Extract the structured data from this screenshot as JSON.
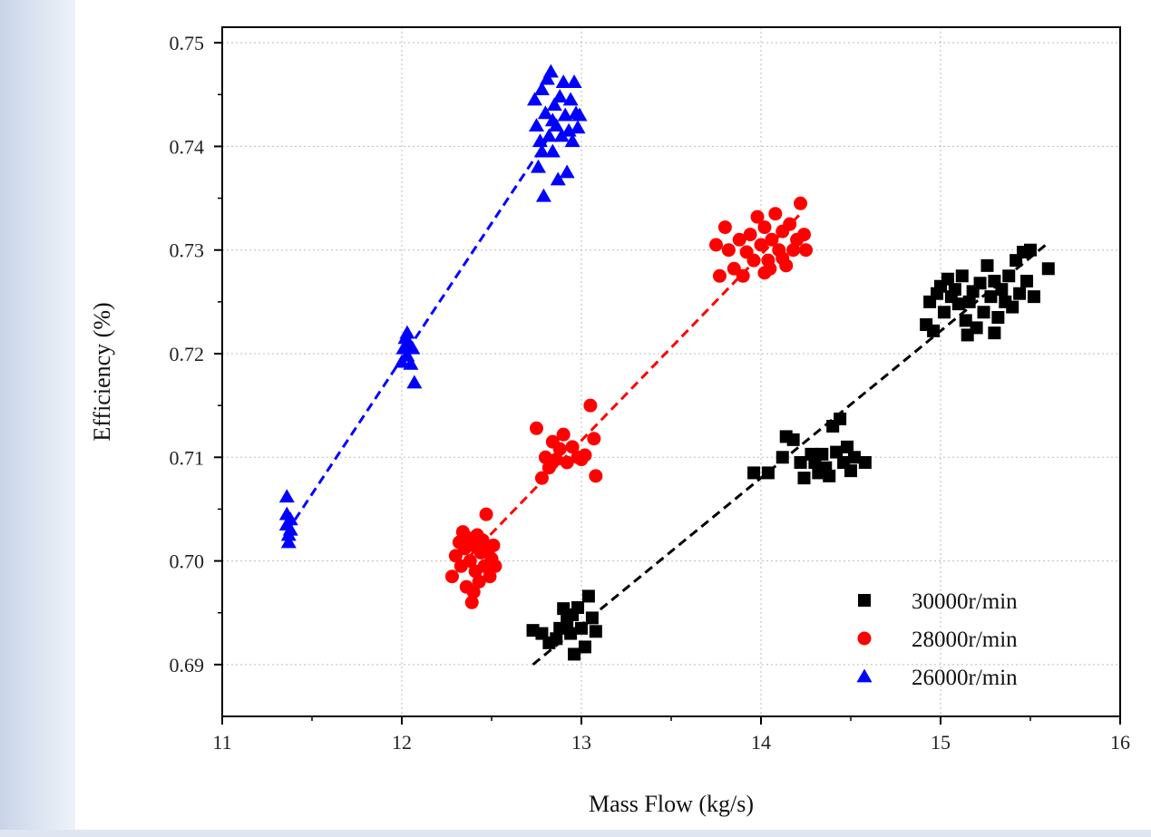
{
  "chart_data": {
    "type": "scatter",
    "xlabel": "Mass Flow (kg/s)",
    "ylabel": "Efficiency (%)",
    "xlim": [
      11,
      16
    ],
    "ylim": [
      0.685,
      0.7515
    ],
    "x_ticks": [
      "11",
      "12",
      "13",
      "14",
      "15",
      "16"
    ],
    "y_ticks": [
      "0.69",
      "0.70",
      "0.71",
      "0.72",
      "0.73",
      "0.74",
      "0.75"
    ],
    "y_tick_values": [
      0.69,
      0.7,
      0.71,
      0.72,
      0.73,
      0.74,
      0.75
    ],
    "x_tick_values": [
      11,
      12,
      13,
      14,
      15,
      16
    ],
    "grid": true,
    "legend_position": "bottom-right",
    "series": [
      {
        "name": "30000r/min",
        "color": "#000000",
        "marker": "square",
        "fit": [
          [
            12.73,
            0.69
          ],
          [
            15.6,
            0.7307
          ]
        ],
        "points": [
          [
            12.73,
            0.6933
          ],
          [
            12.78,
            0.693
          ],
          [
            12.82,
            0.6921
          ],
          [
            12.86,
            0.6925
          ],
          [
            12.88,
            0.6935
          ],
          [
            12.9,
            0.6954
          ],
          [
            12.92,
            0.6942
          ],
          [
            12.94,
            0.693
          ],
          [
            12.95,
            0.6948
          ],
          [
            12.96,
            0.691
          ],
          [
            12.98,
            0.6955
          ],
          [
            13.0,
            0.6935
          ],
          [
            13.02,
            0.6917
          ],
          [
            13.04,
            0.6966
          ],
          [
            13.06,
            0.6945
          ],
          [
            13.08,
            0.6932
          ],
          [
            13.96,
            0.7085
          ],
          [
            14.04,
            0.7085
          ],
          [
            14.12,
            0.71
          ],
          [
            14.14,
            0.712
          ],
          [
            14.18,
            0.7117
          ],
          [
            14.22,
            0.7095
          ],
          [
            14.24,
            0.708
          ],
          [
            14.28,
            0.7103
          ],
          [
            14.3,
            0.7095
          ],
          [
            14.32,
            0.7085
          ],
          [
            14.34,
            0.7103
          ],
          [
            14.36,
            0.709
          ],
          [
            14.38,
            0.7082
          ],
          [
            14.4,
            0.713
          ],
          [
            14.42,
            0.7105
          ],
          [
            14.44,
            0.7137
          ],
          [
            14.46,
            0.7095
          ],
          [
            14.48,
            0.711
          ],
          [
            14.5,
            0.7087
          ],
          [
            14.52,
            0.71
          ],
          [
            14.58,
            0.7095
          ],
          [
            14.92,
            0.7228
          ],
          [
            14.94,
            0.725
          ],
          [
            14.96,
            0.7222
          ],
          [
            14.98,
            0.7258
          ],
          [
            15.0,
            0.7265
          ],
          [
            15.02,
            0.724
          ],
          [
            15.04,
            0.7272
          ],
          [
            15.06,
            0.7255
          ],
          [
            15.08,
            0.7262
          ],
          [
            15.1,
            0.7248
          ],
          [
            15.12,
            0.7275
          ],
          [
            15.14,
            0.7232
          ],
          [
            15.15,
            0.7218
          ],
          [
            15.16,
            0.725
          ],
          [
            15.18,
            0.726
          ],
          [
            15.2,
            0.7225
          ],
          [
            15.22,
            0.7268
          ],
          [
            15.24,
            0.724
          ],
          [
            15.26,
            0.7285
          ],
          [
            15.28,
            0.7255
          ],
          [
            15.3,
            0.727
          ],
          [
            15.32,
            0.7235
          ],
          [
            15.34,
            0.7262
          ],
          [
            15.36,
            0.725
          ],
          [
            15.38,
            0.7275
          ],
          [
            15.4,
            0.7245
          ],
          [
            15.42,
            0.729
          ],
          [
            15.44,
            0.7258
          ],
          [
            15.46,
            0.7298
          ],
          [
            15.48,
            0.727
          ],
          [
            15.5,
            0.73
          ],
          [
            15.52,
            0.7255
          ],
          [
            15.6,
            0.7282
          ],
          [
            15.3,
            0.722
          ]
        ]
      },
      {
        "name": "28000r/min",
        "color": "#ff0000",
        "marker": "circle",
        "fit": [
          [
            12.38,
            0.7005
          ],
          [
            14.22,
            0.7335
          ]
        ],
        "points": [
          [
            12.28,
            0.6985
          ],
          [
            12.3,
            0.7005
          ],
          [
            12.32,
            0.7018
          ],
          [
            12.33,
            0.6995
          ],
          [
            12.35,
            0.7012
          ],
          [
            12.36,
            0.6975
          ],
          [
            12.37,
            0.7022
          ],
          [
            12.38,
            0.7
          ],
          [
            12.39,
            0.696
          ],
          [
            12.4,
            0.7015
          ],
          [
            12.41,
            0.699
          ],
          [
            12.42,
            0.7025
          ],
          [
            12.43,
            0.698
          ],
          [
            12.44,
            0.7008
          ],
          [
            12.45,
            0.702
          ],
          [
            12.46,
            0.6995
          ],
          [
            12.47,
            0.7045
          ],
          [
            12.48,
            0.701
          ],
          [
            12.49,
            0.6985
          ],
          [
            12.5,
            0.7002
          ],
          [
            12.51,
            0.7015
          ],
          [
            12.52,
            0.6995
          ],
          [
            12.34,
            0.7028
          ],
          [
            12.4,
            0.697
          ],
          [
            12.75,
            0.7128
          ],
          [
            12.78,
            0.708
          ],
          [
            12.8,
            0.71
          ],
          [
            12.82,
            0.709
          ],
          [
            12.84,
            0.7115
          ],
          [
            12.86,
            0.7098
          ],
          [
            12.88,
            0.7108
          ],
          [
            12.9,
            0.7122
          ],
          [
            12.92,
            0.7095
          ],
          [
            12.95,
            0.711
          ],
          [
            12.98,
            0.71
          ],
          [
            13.0,
            0.7098
          ],
          [
            13.02,
            0.7102
          ],
          [
            13.05,
            0.715
          ],
          [
            13.07,
            0.7118
          ],
          [
            13.08,
            0.7082
          ],
          [
            13.75,
            0.7305
          ],
          [
            13.77,
            0.7275
          ],
          [
            13.8,
            0.7322
          ],
          [
            13.82,
            0.73
          ],
          [
            13.85,
            0.7282
          ],
          [
            13.88,
            0.731
          ],
          [
            13.9,
            0.7275
          ],
          [
            13.92,
            0.7298
          ],
          [
            13.94,
            0.7315
          ],
          [
            13.96,
            0.729
          ],
          [
            13.98,
            0.7332
          ],
          [
            14.0,
            0.7305
          ],
          [
            14.02,
            0.7322
          ],
          [
            14.04,
            0.729
          ],
          [
            14.05,
            0.7282
          ],
          [
            14.06,
            0.731
          ],
          [
            14.08,
            0.7335
          ],
          [
            14.1,
            0.73
          ],
          [
            14.12,
            0.7318
          ],
          [
            14.14,
            0.7285
          ],
          [
            14.16,
            0.7325
          ],
          [
            14.18,
            0.73
          ],
          [
            14.2,
            0.731
          ],
          [
            14.22,
            0.7345
          ],
          [
            14.24,
            0.7315
          ],
          [
            14.25,
            0.73
          ],
          [
            14.12,
            0.7292
          ],
          [
            14.02,
            0.7278
          ]
        ]
      },
      {
        "name": "26000r/min",
        "color": "#0000ff",
        "marker": "triangle",
        "fit": [
          [
            11.36,
            0.7028
          ],
          [
            12.83,
            0.7412
          ]
        ],
        "points": [
          [
            11.36,
            0.7062
          ],
          [
            11.36,
            0.7045
          ],
          [
            11.36,
            0.7035
          ],
          [
            11.37,
            0.7025
          ],
          [
            11.37,
            0.7018
          ],
          [
            11.38,
            0.703
          ],
          [
            11.38,
            0.704
          ],
          [
            12.0,
            0.7192
          ],
          [
            12.01,
            0.7205
          ],
          [
            12.02,
            0.7215
          ],
          [
            12.03,
            0.7198
          ],
          [
            12.04,
            0.721
          ],
          [
            12.05,
            0.719
          ],
          [
            12.06,
            0.7205
          ],
          [
            12.07,
            0.7172
          ],
          [
            12.03,
            0.722
          ],
          [
            12.74,
            0.7445
          ],
          [
            12.75,
            0.742
          ],
          [
            12.76,
            0.738
          ],
          [
            12.77,
            0.7405
          ],
          [
            12.78,
            0.7455
          ],
          [
            12.79,
            0.7352
          ],
          [
            12.8,
            0.7432
          ],
          [
            12.81,
            0.7465
          ],
          [
            12.82,
            0.741
          ],
          [
            12.83,
            0.7472
          ],
          [
            12.84,
            0.7395
          ],
          [
            12.85,
            0.744
          ],
          [
            12.86,
            0.742
          ],
          [
            12.87,
            0.7368
          ],
          [
            12.88,
            0.7448
          ],
          [
            12.89,
            0.741
          ],
          [
            12.9,
            0.7462
          ],
          [
            12.91,
            0.743
          ],
          [
            12.92,
            0.7375
          ],
          [
            12.93,
            0.7415
          ],
          [
            12.94,
            0.7445
          ],
          [
            12.95,
            0.7405
          ],
          [
            12.96,
            0.7462
          ],
          [
            12.97,
            0.7432
          ],
          [
            12.98,
            0.7418
          ],
          [
            12.99,
            0.743
          ],
          [
            12.78,
            0.7395
          ],
          [
            12.84,
            0.7425
          ]
        ]
      }
    ]
  }
}
